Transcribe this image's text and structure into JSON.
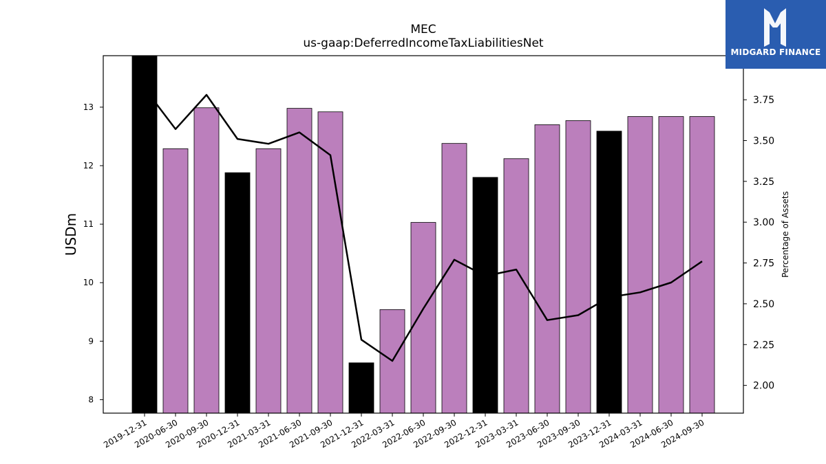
{
  "colors": {
    "bar_primary": "#bb7fbc",
    "bar_year_end": "#000000",
    "line": "#000000",
    "logo_bg": "#2a5db0"
  },
  "logo": {
    "text": "MIDGARD FINANCE",
    "icon": "midgard-logo-icon"
  },
  "chart_data": {
    "type": "bar",
    "title": "MEC",
    "subtitle": "us-gaap:DeferredIncomeTaxLiabilitiesNet",
    "ylabel": "USDm",
    "y2label": "Percentage of Assets",
    "categories": [
      "2019-12-31",
      "2020-06-30",
      "2020-09-30",
      "2020-12-31",
      "2021-03-31",
      "2021-06-30",
      "2021-09-30",
      "2021-12-31",
      "2022-03-31",
      "2022-06-30",
      "2022-09-30",
      "2022-12-31",
      "2023-03-31",
      "2023-06-30",
      "2023-09-30",
      "2023-12-31",
      "2024-03-31",
      "2024-06-30",
      "2024-09-30"
    ],
    "ylim": [
      7.77,
      13.88
    ],
    "yticks": [
      8,
      9,
      10,
      11,
      12,
      13
    ],
    "y2lim": [
      1.83,
      4.02
    ],
    "y2ticks": [
      "2.00",
      "2.25",
      "2.50",
      "2.75",
      "3.00",
      "3.25",
      "3.50",
      "3.75"
    ],
    "series": [
      {
        "values": [
          13.88,
          12.29,
          12.99,
          11.88,
          12.29,
          12.98,
          12.92,
          8.63,
          9.54,
          11.03,
          12.38,
          11.8,
          12.12,
          12.7,
          12.77,
          12.59,
          12.84,
          12.84,
          12.84
        ],
        "year_end": [
          true,
          false,
          false,
          true,
          false,
          false,
          false,
          true,
          false,
          false,
          false,
          true,
          false,
          false,
          false,
          true,
          false,
          false,
          false
        ]
      },
      {
        "axis": "right",
        "type": "line",
        "values": [
          3.82,
          3.57,
          3.78,
          3.51,
          3.48,
          3.55,
          3.41,
          2.28,
          2.15,
          2.47,
          2.77,
          2.67,
          2.71,
          2.4,
          2.43,
          2.54,
          2.57,
          2.63,
          2.76
        ]
      }
    ],
    "grid": false
  }
}
